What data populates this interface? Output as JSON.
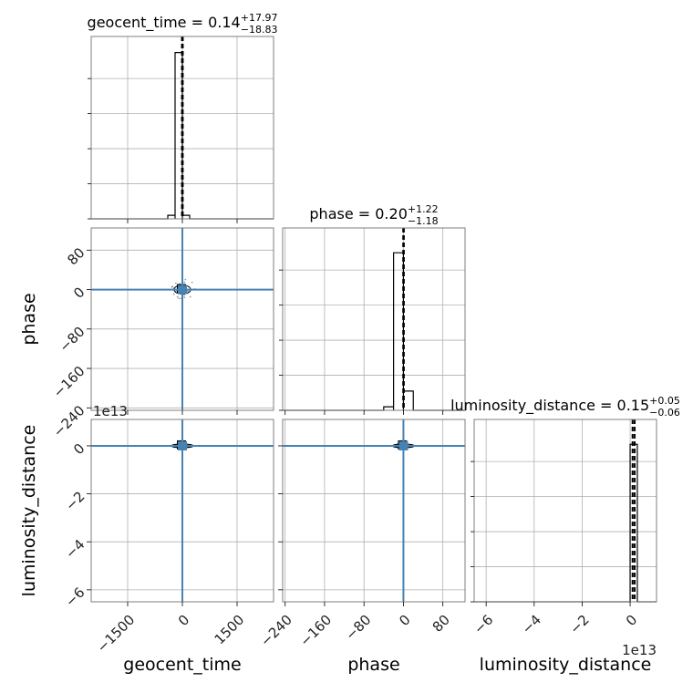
{
  "chart_data": {
    "type": "corner",
    "parameters": [
      "geocent_time",
      "phase",
      "luminosity_distance"
    ],
    "axis_labels": {
      "geocent_time": "geocent_time",
      "phase": "phase",
      "luminosity_distance": "luminosity_distance"
    },
    "titles": [
      {
        "param": "geocent_time",
        "prefix": "geocent_time = 0.14",
        "plus": "+17.97",
        "minus": "−18.83"
      },
      {
        "param": "phase",
        "prefix": "phase = 0.20",
        "plus": "+1.22",
        "minus": "−1.18"
      },
      {
        "param": "luminosity_distance",
        "prefix": "luminosity_distance = 0.15",
        "plus": "+0.05",
        "minus": "−0.06"
      }
    ],
    "ranges": {
      "geocent_time": [
        -2500,
        2500
      ],
      "phase": [
        -245,
        125
      ],
      "luminosity_distance": [
        -6.5,
        1.1
      ]
    },
    "ticks": {
      "geocent_time": [
        {
          "v": -1500,
          "label": "−1500"
        },
        {
          "v": 0,
          "label": "0"
        },
        {
          "v": 1500,
          "label": "1500"
        }
      ],
      "phase": [
        {
          "v": -240,
          "label": "−240"
        },
        {
          "v": -160,
          "label": "−160"
        },
        {
          "v": -80,
          "label": "−80"
        },
        {
          "v": 0,
          "label": "0"
        },
        {
          "v": 80,
          "label": "80"
        }
      ],
      "luminosity_distance": [
        {
          "v": -6,
          "label": "−6"
        },
        {
          "v": -4,
          "label": "−4"
        },
        {
          "v": -2,
          "label": "−2"
        },
        {
          "v": 0,
          "label": "0"
        }
      ]
    },
    "offset_text": "1e13",
    "truths": {
      "geocent_time": 0,
      "phase": 0,
      "luminosity_distance": 0
    },
    "histograms": {
      "geocent_time": {
        "edges": [
          -400,
          -200,
          0,
          200,
          400
        ],
        "counts": [
          0.02,
          0.95,
          0.02,
          0.0
        ]
      },
      "phase": {
        "edges": [
          -40,
          -20,
          0,
          20,
          40
        ],
        "counts": [
          0.02,
          0.9,
          0.11,
          0.0
        ]
      },
      "luminosity_distance": {
        "edges": [
          0.0,
          0.3
        ],
        "counts": [
          0.9
        ]
      }
    },
    "quantile_lines": {
      "geocent_time": [
        -18.69,
        0.14,
        18.11
      ],
      "phase": [
        -0.98,
        0.2,
        1.42
      ],
      "luminosity_distance": [
        0.09,
        0.15,
        0.2
      ]
    },
    "grid": true
  }
}
